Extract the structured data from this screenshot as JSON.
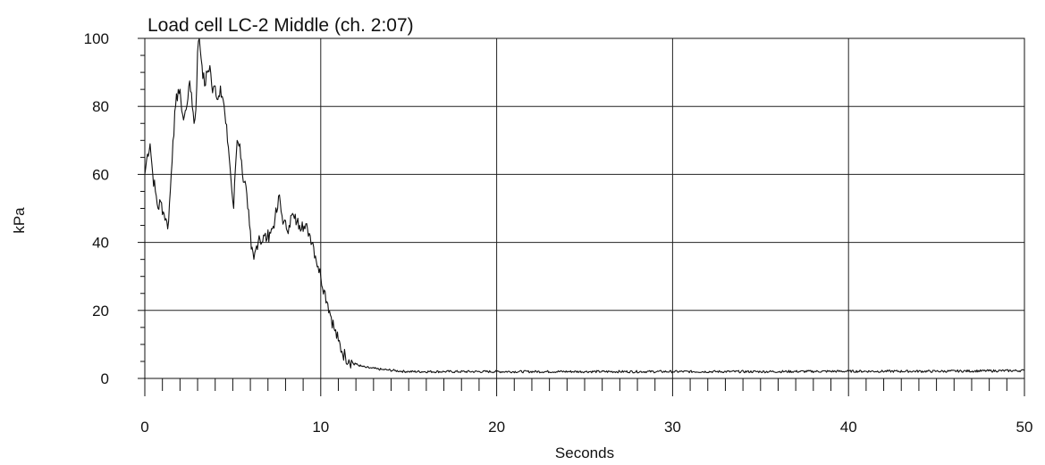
{
  "chart_data": {
    "type": "line",
    "title": "Load cell LC-2 Middle (ch. 2:07)",
    "xlabel": "Seconds",
    "ylabel": "kPa",
    "xlim": [
      0,
      50
    ],
    "ylim": [
      0,
      100
    ],
    "x_ticks": [
      0,
      10,
      20,
      30,
      40,
      50
    ],
    "y_ticks": [
      0,
      20,
      40,
      60,
      80,
      100
    ],
    "grid": true,
    "series": [
      {
        "color": "#111111",
        "points": [
          [
            0,
            60
          ],
          [
            0.15,
            66
          ],
          [
            0.3,
            69
          ],
          [
            0.45,
            60
          ],
          [
            0.6,
            55
          ],
          [
            0.75,
            50
          ],
          [
            0.9,
            52
          ],
          [
            1.05,
            49
          ],
          [
            1.2,
            47
          ],
          [
            1.3,
            44
          ],
          [
            1.45,
            55
          ],
          [
            1.6,
            70
          ],
          [
            1.75,
            80
          ],
          [
            1.9,
            85
          ],
          [
            2.05,
            82
          ],
          [
            2.2,
            76
          ],
          [
            2.35,
            79
          ],
          [
            2.5,
            86
          ],
          [
            2.65,
            84
          ],
          [
            2.8,
            75
          ],
          [
            2.9,
            79
          ],
          [
            3.0,
            96
          ],
          [
            3.1,
            100
          ],
          [
            3.25,
            92
          ],
          [
            3.4,
            86
          ],
          [
            3.55,
            90
          ],
          [
            3.7,
            92
          ],
          [
            3.85,
            84
          ],
          [
            4.0,
            86
          ],
          [
            4.15,
            82
          ],
          [
            4.3,
            86
          ],
          [
            4.45,
            82
          ],
          [
            4.6,
            75
          ],
          [
            4.75,
            68
          ],
          [
            4.85,
            62
          ],
          [
            4.95,
            55
          ],
          [
            5.05,
            50
          ],
          [
            5.15,
            62
          ],
          [
            5.25,
            70
          ],
          [
            5.4,
            69
          ],
          [
            5.55,
            60
          ],
          [
            5.7,
            58
          ],
          [
            5.85,
            50
          ],
          [
            5.95,
            45
          ],
          [
            6.05,
            38
          ],
          [
            6.2,
            35
          ],
          [
            6.35,
            39
          ],
          [
            6.5,
            42
          ],
          [
            6.65,
            40
          ],
          [
            6.8,
            42
          ],
          [
            6.95,
            41
          ],
          [
            7.1,
            43
          ],
          [
            7.25,
            44
          ],
          [
            7.4,
            47
          ],
          [
            7.55,
            50
          ],
          [
            7.65,
            54
          ],
          [
            7.75,
            49
          ],
          [
            7.9,
            46
          ],
          [
            8.05,
            44
          ],
          [
            8.2,
            45
          ],
          [
            8.35,
            48
          ],
          [
            8.5,
            47
          ],
          [
            8.65,
            46
          ],
          [
            8.8,
            45
          ],
          [
            8.95,
            46
          ],
          [
            9.1,
            44
          ],
          [
            9.25,
            44
          ],
          [
            9.4,
            42
          ],
          [
            9.55,
            40
          ],
          [
            9.7,
            36
          ],
          [
            9.85,
            33
          ],
          [
            10.0,
            30
          ],
          [
            10.2,
            26
          ],
          [
            10.4,
            22
          ],
          [
            10.6,
            18
          ],
          [
            10.8,
            14
          ],
          [
            11.0,
            11
          ],
          [
            11.2,
            8
          ],
          [
            11.4,
            6.5
          ],
          [
            11.6,
            5.5
          ],
          [
            11.8,
            4.8
          ],
          [
            12.0,
            4.2
          ],
          [
            12.3,
            3.6
          ],
          [
            12.6,
            3.2
          ],
          [
            12.9,
            3.0
          ],
          [
            13.2,
            2.8
          ],
          [
            13.5,
            2.6
          ],
          [
            13.8,
            2.5
          ],
          [
            14.2,
            2.3
          ],
          [
            14.6,
            2.1
          ],
          [
            15,
            2.0
          ],
          [
            17,
            2.0
          ],
          [
            20,
            2.0
          ],
          [
            25,
            2.0
          ],
          [
            30,
            2.0
          ],
          [
            35,
            2.0
          ],
          [
            40,
            2.1
          ],
          [
            45,
            2.1
          ],
          [
            50,
            2.3
          ]
        ]
      }
    ]
  }
}
